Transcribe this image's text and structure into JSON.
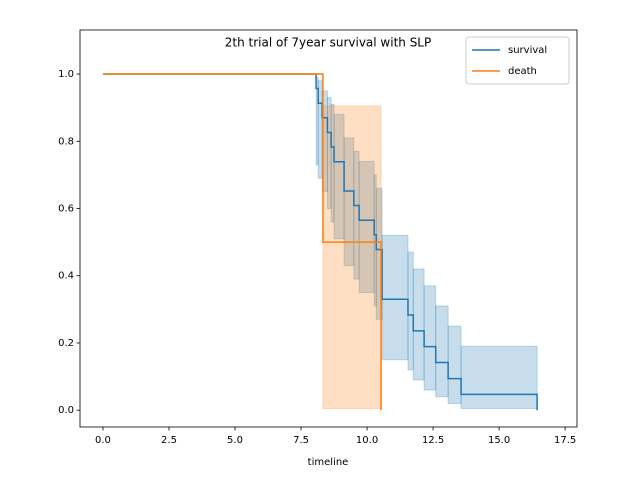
{
  "chart_data": {
    "type": "step",
    "title": "2th trial of 7year survival with SLP",
    "x_label": "timeline",
    "xlim": [
      -0.87,
      17.95
    ],
    "ylim": [
      -0.05,
      1.131
    ],
    "xticks": [
      {
        "value": 0,
        "label": "0.0"
      },
      {
        "value": 2.5,
        "label": "2.5"
      },
      {
        "value": 5,
        "label": "5.0"
      },
      {
        "value": 7.5,
        "label": "7.5"
      },
      {
        "value": 10,
        "label": "10.0"
      },
      {
        "value": 12.5,
        "label": "12.5"
      },
      {
        "value": 15,
        "label": "15.0"
      },
      {
        "value": 17.5,
        "label": "17.5"
      }
    ],
    "yticks": [
      {
        "value": 0,
        "label": "0.0"
      },
      {
        "value": 0.2,
        "label": "0.2"
      },
      {
        "value": 0.4,
        "label": "0.4"
      },
      {
        "value": 0.6,
        "label": "0.6"
      },
      {
        "value": 0.8,
        "label": "0.8"
      },
      {
        "value": 1,
        "label": "1.0"
      }
    ],
    "legend": "upper right",
    "series": [
      {
        "name": "survival",
        "color": "#1f77b4",
        "x": [
          0,
          8.07,
          8.15,
          8.3,
          8.5,
          8.64,
          8.75,
          9.13,
          9.5,
          9.7,
          10.27,
          10.35,
          10.57,
          11.55,
          11.75,
          12.16,
          12.6,
          13.07,
          13.56,
          16.44
        ],
        "values": [
          1,
          0.957,
          0.913,
          0.87,
          0.826,
          0.783,
          0.739,
          0.652,
          0.609,
          0.565,
          0.522,
          0.478,
          0.33,
          0.283,
          0.236,
          0.189,
          0.142,
          0.094,
          0.047,
          0
        ],
        "ci_lower": [
          1,
          0.73,
          0.69,
          0.65,
          0.6,
          0.56,
          0.51,
          0.43,
          0.39,
          0.35,
          0.31,
          0.27,
          0.15,
          0.12,
          0.09,
          0.06,
          0.04,
          0.02,
          0.005,
          0
        ],
        "ci_upper": [
          1,
          0.99,
          0.98,
          0.95,
          0.93,
          0.91,
          0.88,
          0.81,
          0.77,
          0.74,
          0.7,
          0.66,
          0.52,
          0.47,
          0.42,
          0.37,
          0.31,
          0.25,
          0.19,
          0
        ]
      },
      {
        "name": "death",
        "color": "#ff7f0e",
        "x": [
          0,
          8.33,
          10.53
        ],
        "values": [
          1,
          0.5,
          0
        ],
        "ci_lower": [
          1,
          0.005,
          0
        ],
        "ci_upper": [
          1,
          0.905,
          0
        ]
      }
    ]
  }
}
